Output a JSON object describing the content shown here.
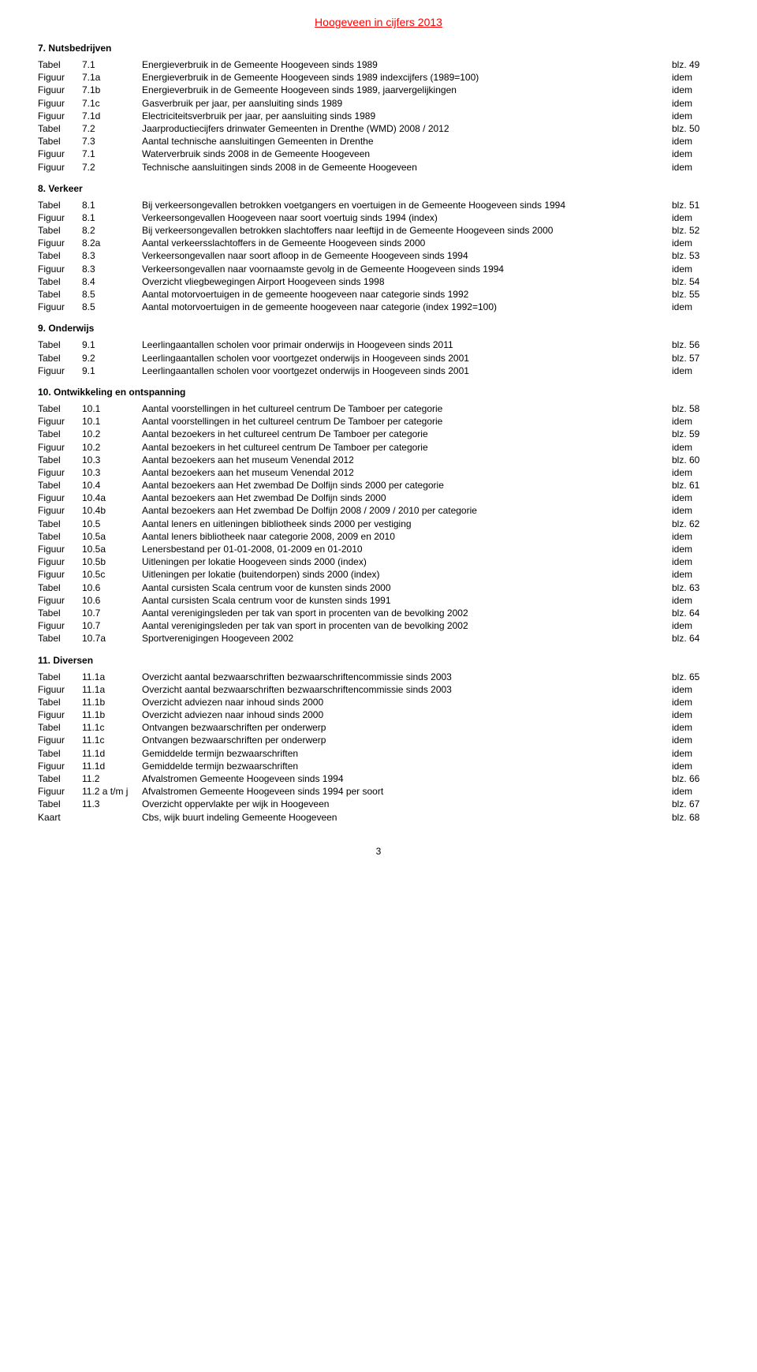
{
  "doc_title": "Hoogeveen in cijfers 2013",
  "footer_page": "3",
  "sections": [
    {
      "title": "7. Nutsbedrijven",
      "rows": [
        {
          "type": "Tabel",
          "num": "7.1",
          "desc": "Energieverbruik in de Gemeente Hoogeveen sinds 1989",
          "page": "blz. 49"
        },
        {
          "type": "Figuur",
          "num": "7.1a",
          "desc": "Energieverbruik in de Gemeente Hoogeveen sinds 1989 indexcijfers (1989=100)",
          "page": "idem"
        },
        {
          "type": "Figuur",
          "num": "7.1b",
          "desc": "Energieverbruik in de Gemeente Hoogeveen sinds 1989, jaarvergelijkingen",
          "page": "idem"
        },
        {
          "type": "Figuur",
          "num": "7.1c",
          "desc": "Gasverbruik per jaar, per aansluiting sinds 1989",
          "page": "idem"
        },
        {
          "type": "Figuur",
          "num": "7.1d",
          "desc": "Electriciteitsverbruik per jaar, per aansluiting sinds 1989",
          "page": "idem"
        },
        {
          "type": "Tabel",
          "num": "7.2",
          "desc": "Jaarproductiecijfers drinwater Gemeenten in Drenthe (WMD)  2008 / 2012",
          "page": "blz. 50"
        },
        {
          "type": "Tabel",
          "num": "7.3",
          "desc": "Aantal technische aansluitingen Gemeenten in Drenthe",
          "page": "idem"
        },
        {
          "type": "Figuur",
          "num": "7.1",
          "desc": "Waterverbruik sinds 2008 in de Gemeente Hoogeveen",
          "page": "idem"
        },
        {
          "type": "Figuur",
          "num": "7.2",
          "desc": "Technische aansluitingen sinds 2008 in de Gemeente Hoogeveen",
          "page": "idem"
        }
      ]
    },
    {
      "title": "8. Verkeer",
      "rows": [
        {
          "type": "Tabel",
          "num": "8.1",
          "desc": "Bij verkeersongevallen betrokken voetgangers en voertuigen in de Gemeente Hoogeveen sinds 1994",
          "page": "blz. 51"
        },
        {
          "type": "Figuur",
          "num": "8.1",
          "desc": "Verkeersongevallen Hoogeveen naar soort voertuig sinds 1994 (index)",
          "page": "idem"
        },
        {
          "type": "Tabel",
          "num": "8.2",
          "desc": "Bij verkeersongevallen betrokken slachtoffers naar leeftijd in de Gemeente Hoogeveen sinds 2000",
          "page": "blz. 52"
        },
        {
          "type": "Figuur",
          "num": "8.2a",
          "desc": "Aantal verkeersslachtoffers in de Gemeente Hoogeveen sinds 2000",
          "page": "idem"
        },
        {
          "type": "Tabel",
          "num": "8.3",
          "desc": "Verkeersongevallen naar soort afloop in de Gemeente Hoogeveen sinds 1994",
          "page": "blz. 53"
        },
        {
          "type": "Figuur",
          "num": "8.3",
          "desc": "Verkeersongevallen naar voornaamste gevolg in de Gemeente Hoogeveen sinds 1994",
          "page": "idem"
        },
        {
          "type": "Tabel",
          "num": "8.4",
          "desc": "Overzicht vliegbewegingen Airport Hoogeveen sinds 1998",
          "page": "blz. 54"
        },
        {
          "type": "Tabel",
          "num": "8.5",
          "desc": "Aantal motorvoertuigen in de gemeente hoogeveen naar categorie sinds 1992",
          "page": "blz. 55"
        },
        {
          "type": "Figuur",
          "num": "8.5",
          "desc": "Aantal motorvoertuigen in de gemeente hoogeveen naar categorie (index 1992=100)",
          "page": "idem"
        }
      ]
    },
    {
      "title": "9. Onderwijs",
      "rows": [
        {
          "type": "Tabel",
          "num": "9.1",
          "desc": "Leerlingaantallen scholen voor primair onderwijs in Hoogeveen sinds 2011",
          "page": "blz. 56"
        },
        {
          "type": "Tabel",
          "num": "9.2",
          "desc": "Leerlingaantallen scholen voor voortgezet onderwijs in Hoogeveen sinds 2001",
          "page": "blz. 57"
        },
        {
          "type": "Figuur",
          "num": "9.1",
          "desc": "Leerlingaantallen scholen voor voortgezet onderwijs in Hoogeveen sinds 2001",
          "page": "idem"
        }
      ]
    },
    {
      "title": "10. Ontwikkeling en ontspanning",
      "rows": [
        {
          "type": "Tabel",
          "num": "10.1",
          "desc": "Aantal voorstellingen in het cultureel centrum De Tamboer per categorie",
          "page": "blz. 58"
        },
        {
          "type": "Figuur",
          "num": "10.1",
          "desc": "Aantal voorstellingen in het cultureel centrum De Tamboer per categorie",
          "page": "idem"
        },
        {
          "type": "Tabel",
          "num": "10.2",
          "desc": "Aantal bezoekers in het cultureel centrum De Tamboer per categorie",
          "page": "blz. 59"
        },
        {
          "type": "Figuur",
          "num": "10.2",
          "desc": "Aantal bezoekers in het cultureel centrum De Tamboer per categorie",
          "page": "idem"
        },
        {
          "type": "Tabel",
          "num": "10.3",
          "desc": "Aantal bezoekers aan het museum Venendal 2012",
          "page": "blz. 60"
        },
        {
          "type": "Figuur",
          "num": "10.3",
          "desc": "Aantal bezoekers aan het museum Venendal 2012",
          "page": "idem"
        },
        {
          "type": "Tabel",
          "num": "10.4",
          "desc": "Aantal bezoekers aan Het zwembad De Dolfijn sinds 2000 per categorie",
          "page": "blz. 61"
        },
        {
          "type": "Figuur",
          "num": "10.4a",
          "desc": "Aantal bezoekers aan Het zwembad De Dolfijn sinds 2000",
          "page": "idem"
        },
        {
          "type": "Figuur",
          "num": "10.4b",
          "desc": "Aantal bezoekers aan Het zwembad De Dolfijn 2008 / 2009  / 2010 per categorie",
          "page": "idem"
        },
        {
          "type": "Tabel",
          "num": "10.5",
          "desc": "Aantal leners en uitleningen bibliotheek sinds 2000 per vestiging",
          "page": "blz. 62"
        },
        {
          "type": "Tabel",
          "num": "10.5a",
          "desc": "Aantal leners bibliotheek naar categorie 2008, 2009 en 2010",
          "page": "idem"
        },
        {
          "type": "Figuur",
          "num": "10.5a",
          "desc": "Lenersbestand per 01-01-2008, 01-2009 en 01-2010",
          "page": "idem"
        },
        {
          "type": "Figuur",
          "num": "10.5b",
          "desc": "Uitleningen per lokatie Hoogeveen sinds 2000 (index)",
          "page": "idem"
        },
        {
          "type": "Figuur",
          "num": "10.5c",
          "desc": "Uitleningen per lokatie (buitendorpen) sinds 2000 (index)",
          "page": "idem"
        },
        {
          "type": "Tabel",
          "num": "10.6",
          "desc": "Aantal cursisten Scala centrum voor de kunsten sinds 2000",
          "page": "blz. 63"
        },
        {
          "type": "Figuur",
          "num": "10.6",
          "desc": "Aantal cursisten Scala centrum voor de kunsten sinds 1991",
          "page": "idem"
        },
        {
          "type": "Tabel",
          "num": "10.7",
          "desc": "Aantal verenigingsleden per tak van sport in procenten van de bevolking 2002",
          "page": "blz. 64"
        },
        {
          "type": "Figuur",
          "num": "10.7",
          "desc": "Aantal verenigingsleden per tak van sport in procenten van de bevolking 2002",
          "page": "idem"
        },
        {
          "type": "Tabel",
          "num": "10.7a",
          "desc": "Sportverenigingen Hoogeveen 2002",
          "page": "blz. 64"
        }
      ]
    },
    {
      "title": "11. Diversen",
      "rows": [
        {
          "type": "Tabel",
          "num": "11.1a",
          "desc": "Overzicht aantal bezwaarschriften bezwaarschriftencommissie sinds 2003",
          "page": "blz. 65"
        },
        {
          "type": "Figuur",
          "num": "11.1a",
          "desc": "Overzicht aantal bezwaarschriften bezwaarschriftencommissie sinds 2003",
          "page": "idem"
        },
        {
          "type": "Tabel",
          "num": "11.1b",
          "desc": "Overzicht adviezen naar inhoud sinds 2000",
          "page": "idem"
        },
        {
          "type": "Figuur",
          "num": "11.1b",
          "desc": "Overzicht adviezen naar inhoud sinds 2000",
          "page": "idem"
        },
        {
          "type": "Tabel",
          "num": "11.1c",
          "desc": "Ontvangen bezwaarschriften per onderwerp",
          "page": "idem"
        },
        {
          "type": "Figuur",
          "num": "11.1c",
          "desc": "Ontvangen bezwaarschriften per onderwerp",
          "page": "idem"
        },
        {
          "type": "Tabel",
          "num": "11.1d",
          "desc": "Gemiddelde termijn bezwaarschriften",
          "page": "idem"
        },
        {
          "type": "Figuur",
          "num": "11.1d",
          "desc": "Gemiddelde termijn bezwaarschriften",
          "page": "idem"
        },
        {
          "type": "Tabel",
          "num": "11.2",
          "desc": "Afvalstromen Gemeente Hoogeveen sinds 1994",
          "page": "blz. 66"
        },
        {
          "type": "Figuur",
          "num": "11.2 a t/m j",
          "desc": "Afvalstromen Gemeente Hoogeveen sinds 1994 per soort",
          "page": "idem"
        },
        {
          "type": "Tabel",
          "num": "11.3",
          "desc": "Overzicht oppervlakte per wijk in Hoogeveen",
          "page": "blz. 67"
        },
        {
          "type": "Kaart",
          "num": "",
          "desc": "Cbs, wijk buurt indeling Gemeente Hoogeveen",
          "page": "blz. 68"
        }
      ]
    }
  ]
}
